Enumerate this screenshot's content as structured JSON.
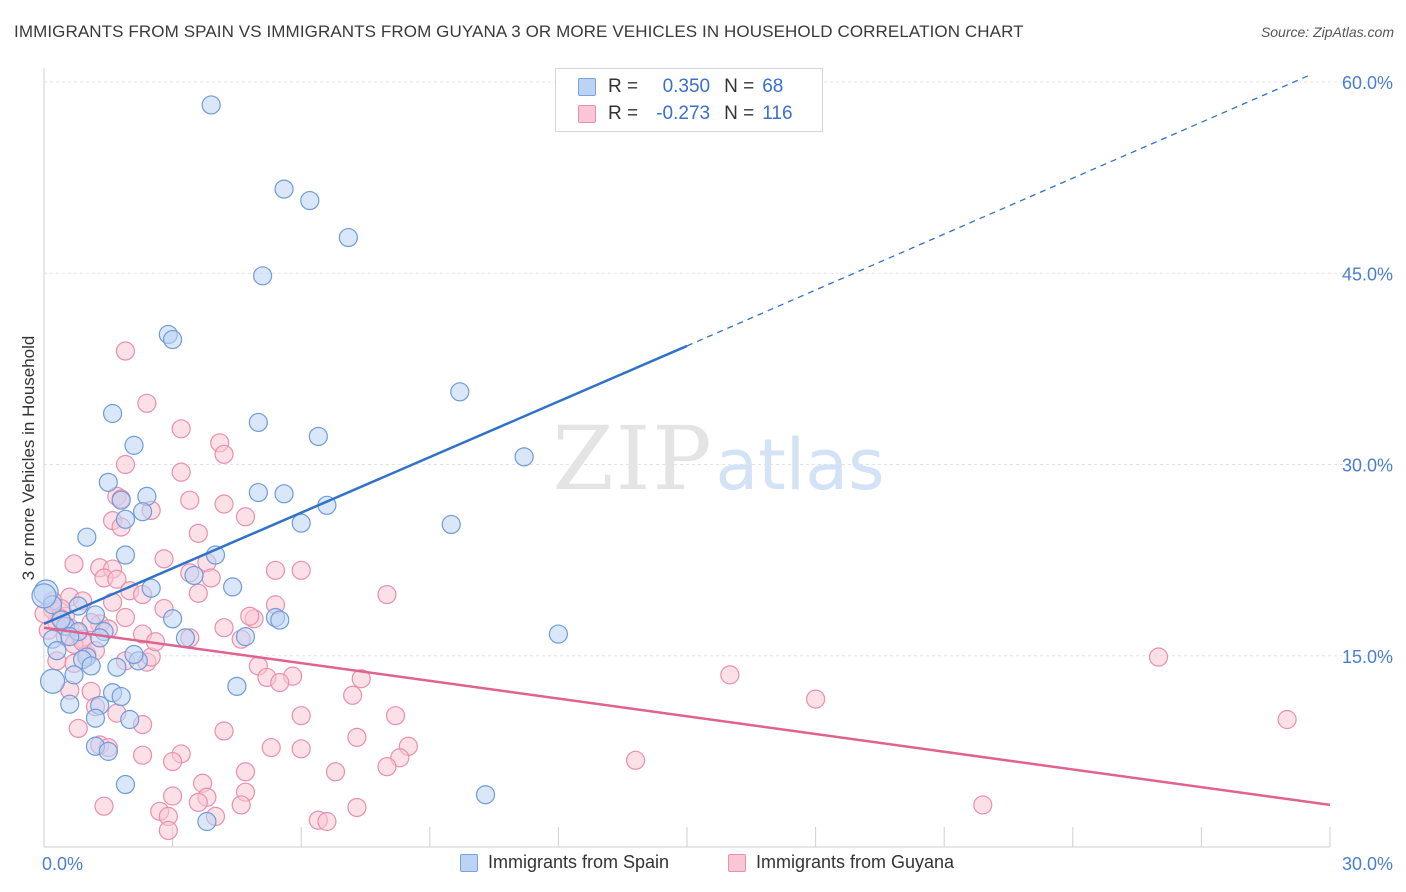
{
  "title": "IMMIGRANTS FROM SPAIN VS IMMIGRANTS FROM GUYANA 3 OR MORE VEHICLES IN HOUSEHOLD CORRELATION CHART",
  "source": "Source: ZipAtlas.com",
  "watermark": {
    "part1": "ZIP",
    "part2": "atlas"
  },
  "legend": {
    "r_label": "R =",
    "n_label": "N =",
    "series": [
      {
        "name": "Immigrants from Spain",
        "r": "0.350",
        "n": "68",
        "color": "#4a86d8"
      },
      {
        "name": "Immigrants from Guyana",
        "r": "-0.273",
        "n": "116",
        "color": "#e8769c"
      }
    ]
  },
  "colors": {
    "blue_fill": "#bcd3f4",
    "blue_stroke": "#6f9bd9",
    "blue_line": "#2f72c8",
    "pink_fill": "#f9c6d6",
    "pink_stroke": "#e98fae",
    "pink_line": "#e0628f",
    "grid": "#e3e3e3",
    "axis_label": "#4a7fd0"
  },
  "chart_data": {
    "type": "scatter",
    "title": "IMMIGRANTS FROM SPAIN VS IMMIGRANTS FROM GUYANA 3 OR MORE VEHICLES IN HOUSEHOLD CORRELATION CHART",
    "xlabel": "",
    "ylabel": "3 or more Vehicles in Household",
    "xlim": [
      0,
      30
    ],
    "ylim": [
      0,
      60
    ],
    "x_tick_labels": [
      "0.0%",
      "30.0%"
    ],
    "y_ticks": [
      15,
      30,
      45,
      60
    ],
    "y_tick_labels": [
      "15.0%",
      "30.0%",
      "45.0%",
      "60.0%"
    ],
    "grid": true,
    "series": [
      {
        "name": "Immigrants from Spain",
        "trend": {
          "x": [
            0,
            15
          ],
          "y": [
            17.5,
            39.3
          ],
          "dashed_extension_to": [
            29.5,
            60.5
          ]
        },
        "points": [
          [
            3.9,
            58.2
          ],
          [
            5.6,
            51.6
          ],
          [
            6.2,
            50.7
          ],
          [
            7.1,
            47.8
          ],
          [
            5.1,
            44.8
          ],
          [
            2.9,
            40.2
          ],
          [
            3.0,
            39.8
          ],
          [
            9.7,
            35.7
          ],
          [
            1.6,
            34.0
          ],
          [
            5.0,
            33.3
          ],
          [
            6.4,
            32.2
          ],
          [
            2.1,
            31.5
          ],
          [
            11.2,
            30.6
          ],
          [
            1.5,
            28.6
          ],
          [
            1.8,
            27.2
          ],
          [
            2.4,
            27.5
          ],
          [
            5.0,
            27.8
          ],
          [
            5.6,
            27.7
          ],
          [
            2.3,
            26.3
          ],
          [
            6.6,
            26.8
          ],
          [
            1.9,
            25.7
          ],
          [
            6.0,
            25.4
          ],
          [
            9.5,
            25.3
          ],
          [
            1.0,
            24.3
          ],
          [
            1.9,
            22.9
          ],
          [
            4.0,
            22.9
          ],
          [
            3.5,
            21.3
          ],
          [
            4.4,
            20.4
          ],
          [
            0.05,
            20.0
          ],
          [
            2.5,
            20.3
          ],
          [
            0.2,
            19.0
          ],
          [
            1.2,
            18.2
          ],
          [
            3.0,
            17.9
          ],
          [
            5.4,
            18.0
          ],
          [
            5.5,
            17.8
          ],
          [
            0.5,
            17.3
          ],
          [
            0.8,
            16.9
          ],
          [
            1.4,
            16.9
          ],
          [
            0.6,
            16.5
          ],
          [
            3.3,
            16.4
          ],
          [
            4.7,
            16.5
          ],
          [
            0.2,
            16.3
          ],
          [
            0.3,
            15.4
          ],
          [
            1.0,
            14.9
          ],
          [
            0.9,
            14.7
          ],
          [
            1.1,
            14.2
          ],
          [
            1.7,
            14.1
          ],
          [
            2.2,
            14.6
          ],
          [
            0.7,
            13.5
          ],
          [
            0.2,
            13.0
          ],
          [
            4.5,
            12.6
          ],
          [
            1.6,
            12.1
          ],
          [
            1.8,
            11.8
          ],
          [
            0.6,
            11.2
          ],
          [
            1.3,
            11.1
          ],
          [
            1.2,
            10.1
          ],
          [
            2.0,
            10.0
          ],
          [
            12.0,
            16.7
          ],
          [
            1.2,
            7.9
          ],
          [
            1.5,
            7.5
          ],
          [
            1.9,
            4.9
          ],
          [
            10.3,
            4.1
          ],
          [
            3.8,
            2.0
          ],
          [
            0.4,
            17.8
          ],
          [
            0.8,
            18.9
          ],
          [
            1.3,
            16.4
          ],
          [
            0.0,
            19.7
          ],
          [
            2.1,
            15.1
          ]
        ]
      },
      {
        "name": "Immigrants from Guyana",
        "trend": {
          "x": [
            0,
            30
          ],
          "y": [
            17.2,
            3.3
          ]
        },
        "points": [
          [
            1.9,
            38.9
          ],
          [
            2.4,
            34.8
          ],
          [
            3.2,
            32.8
          ],
          [
            4.1,
            31.7
          ],
          [
            4.2,
            30.8
          ],
          [
            1.9,
            30.0
          ],
          [
            3.2,
            29.4
          ],
          [
            1.7,
            27.5
          ],
          [
            3.4,
            27.2
          ],
          [
            1.8,
            27.3
          ],
          [
            4.2,
            26.9
          ],
          [
            2.5,
            26.4
          ],
          [
            4.7,
            25.9
          ],
          [
            1.6,
            25.6
          ],
          [
            1.8,
            25.1
          ],
          [
            3.6,
            24.6
          ],
          [
            0.7,
            22.2
          ],
          [
            2.8,
            22.6
          ],
          [
            3.8,
            22.3
          ],
          [
            1.3,
            21.9
          ],
          [
            1.6,
            21.8
          ],
          [
            3.4,
            21.5
          ],
          [
            5.4,
            21.7
          ],
          [
            6.0,
            21.7
          ],
          [
            1.4,
            21.1
          ],
          [
            3.9,
            21.1
          ],
          [
            1.7,
            21.0
          ],
          [
            2.0,
            20.1
          ],
          [
            2.3,
            19.8
          ],
          [
            8.0,
            19.8
          ],
          [
            0.6,
            19.6
          ],
          [
            0.9,
            19.3
          ],
          [
            1.6,
            19.2
          ],
          [
            2.8,
            18.7
          ],
          [
            0.2,
            18.6
          ],
          [
            0.5,
            18.1
          ],
          [
            1.9,
            18.0
          ],
          [
            4.9,
            17.9
          ],
          [
            1.3,
            17.5
          ],
          [
            0.3,
            17.6
          ],
          [
            0.6,
            17.2
          ],
          [
            1.5,
            17.1
          ],
          [
            4.2,
            17.2
          ],
          [
            0.1,
            17.0
          ],
          [
            0.8,
            16.8
          ],
          [
            2.3,
            16.7
          ],
          [
            0.5,
            16.5
          ],
          [
            0.9,
            16.3
          ],
          [
            3.4,
            16.4
          ],
          [
            4.6,
            16.3
          ],
          [
            0.7,
            15.9
          ],
          [
            1.0,
            15.1
          ],
          [
            1.9,
            14.6
          ],
          [
            2.4,
            14.5
          ],
          [
            5.0,
            14.2
          ],
          [
            0.3,
            14.6
          ],
          [
            5.2,
            13.3
          ],
          [
            5.8,
            13.4
          ],
          [
            5.5,
            12.9
          ],
          [
            1.1,
            12.2
          ],
          [
            7.4,
            13.2
          ],
          [
            16.0,
            13.5
          ],
          [
            26.0,
            14.9
          ],
          [
            7.2,
            11.9
          ],
          [
            18.0,
            11.6
          ],
          [
            0.6,
            12.3
          ],
          [
            1.2,
            11.0
          ],
          [
            1.7,
            10.5
          ],
          [
            6.0,
            10.3
          ],
          [
            8.2,
            10.3
          ],
          [
            29.0,
            10.0
          ],
          [
            2.3,
            9.6
          ],
          [
            4.2,
            9.1
          ],
          [
            0.8,
            9.3
          ],
          [
            7.3,
            8.6
          ],
          [
            5.3,
            7.8
          ],
          [
            6.0,
            7.7
          ],
          [
            8.5,
            7.9
          ],
          [
            1.3,
            8.0
          ],
          [
            1.5,
            7.8
          ],
          [
            3.2,
            7.3
          ],
          [
            2.3,
            7.2
          ],
          [
            8.3,
            7.0
          ],
          [
            13.8,
            6.8
          ],
          [
            3.0,
            6.7
          ],
          [
            8.0,
            6.3
          ],
          [
            4.7,
            5.9
          ],
          [
            6.8,
            5.9
          ],
          [
            3.7,
            5.0
          ],
          [
            4.7,
            4.3
          ],
          [
            3.0,
            4.0
          ],
          [
            3.8,
            3.9
          ],
          [
            3.6,
            3.5
          ],
          [
            1.4,
            3.2
          ],
          [
            2.7,
            2.8
          ],
          [
            4.6,
            3.3
          ],
          [
            7.3,
            3.1
          ],
          [
            2.9,
            2.4
          ],
          [
            4.0,
            2.4
          ],
          [
            6.4,
            2.1
          ],
          [
            6.6,
            2.0
          ],
          [
            2.9,
            1.3
          ],
          [
            21.9,
            3.3
          ],
          [
            0.4,
            18.7
          ],
          [
            0.2,
            19.3
          ],
          [
            1.1,
            17.6
          ],
          [
            0.9,
            16.1
          ],
          [
            0.4,
            17.9
          ],
          [
            1.2,
            15.4
          ],
          [
            2.5,
            14.9
          ],
          [
            0.0,
            18.3
          ],
          [
            3.6,
            19.9
          ],
          [
            4.8,
            18.1
          ],
          [
            2.6,
            16.1
          ],
          [
            5.4,
            19.0
          ],
          [
            0.7,
            14.4
          ]
        ]
      }
    ]
  }
}
